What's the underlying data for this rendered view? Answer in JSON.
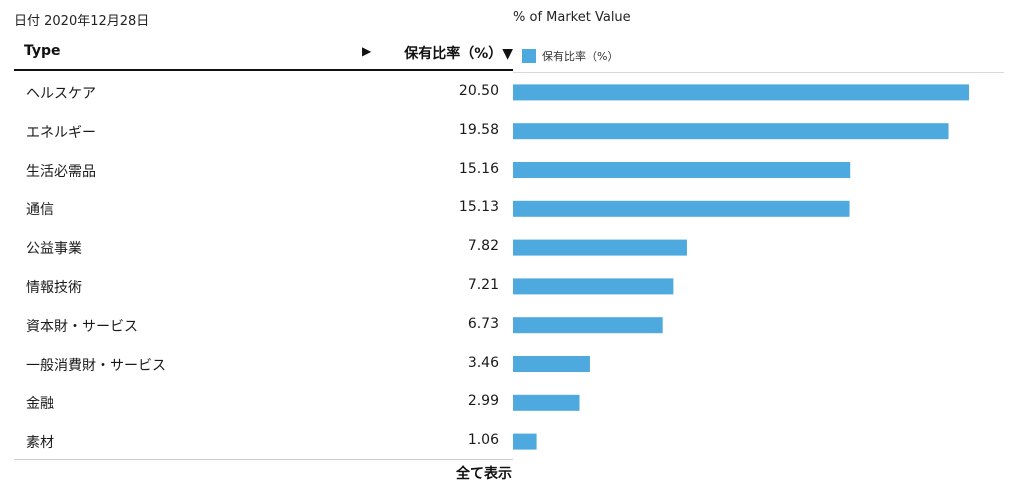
{
  "header": {
    "date_label": "日付 2020年12月28日",
    "chart_title": "% of Market Value"
  },
  "table": {
    "col_type": "Type",
    "sort_arrow": "▶",
    "col_pct": "保有比率（%）▼",
    "show_all_label": "全て表示"
  },
  "legend": {
    "label": "保有比率（%）"
  },
  "colors": {
    "bar": "#4ea9de"
  },
  "chart_data": {
    "type": "bar",
    "orientation": "horizontal",
    "categories": [
      "ヘルスケア",
      "エネルギー",
      "生活必需品",
      "通信",
      "公益事業",
      "情報技術",
      "資本財・サービス",
      "一般消費財・サービス",
      "金融",
      "素材"
    ],
    "series": [
      {
        "name": "保有比率（%）",
        "values": [
          20.5,
          19.58,
          15.16,
          15.13,
          7.82,
          7.21,
          6.73,
          3.46,
          2.99,
          1.06
        ]
      }
    ],
    "value_labels": [
      "20.50",
      "19.58",
      "15.16",
      "15.13",
      "7.82",
      "7.21",
      "6.73",
      "3.46",
      "2.99",
      "1.06"
    ],
    "title": "% of Market Value",
    "xlim": [
      0,
      20.5
    ],
    "grid": false,
    "legend_position": "top-left"
  }
}
